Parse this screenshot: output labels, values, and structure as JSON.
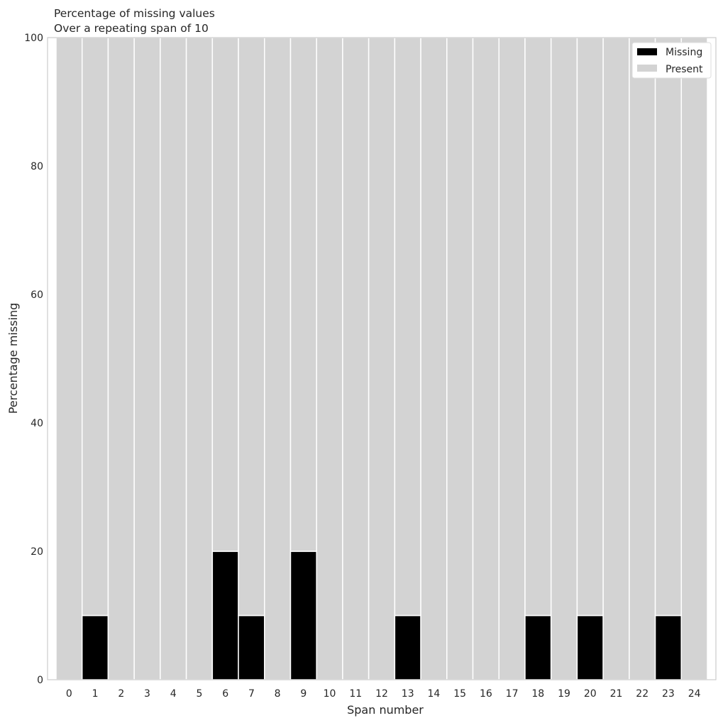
{
  "chart_data": {
    "type": "bar",
    "stacked": true,
    "title": "Percentage of missing values",
    "subtitle": "Over a repeating span of 10",
    "xlabel": "Span number",
    "ylabel": "Percentage missing",
    "ylim": [
      0,
      100
    ],
    "yticks": [
      0,
      20,
      40,
      60,
      80,
      100
    ],
    "grid": false,
    "legend_position": "top-right",
    "categories": [
      "0",
      "1",
      "2",
      "3",
      "4",
      "5",
      "6",
      "7",
      "8",
      "9",
      "10",
      "11",
      "12",
      "13",
      "14",
      "15",
      "16",
      "17",
      "18",
      "19",
      "20",
      "21",
      "22",
      "23",
      "24"
    ],
    "series": [
      {
        "name": "Missing",
        "color": "#000000",
        "values": [
          0,
          10,
          0,
          0,
          0,
          0,
          20,
          10,
          0,
          20,
          0,
          0,
          0,
          10,
          0,
          0,
          0,
          0,
          10,
          0,
          10,
          0,
          0,
          10,
          0
        ]
      },
      {
        "name": "Present",
        "color": "#d3d3d3",
        "values": [
          100,
          90,
          100,
          100,
          100,
          100,
          80,
          90,
          100,
          80,
          100,
          100,
          100,
          90,
          100,
          100,
          100,
          100,
          90,
          100,
          90,
          100,
          100,
          90,
          100
        ]
      }
    ]
  }
}
